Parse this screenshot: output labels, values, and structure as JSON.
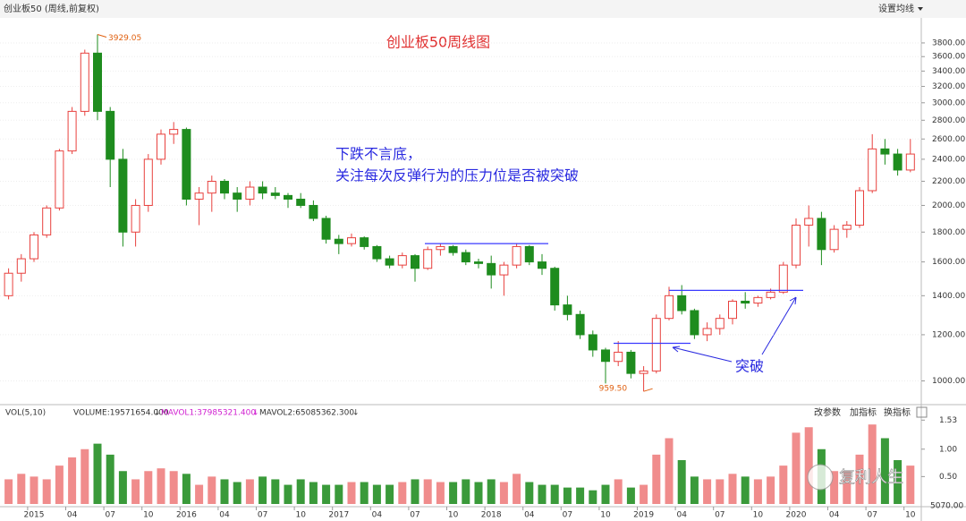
{
  "header": {
    "title": "创业板50 (周线,前复权)",
    "menu": "设置均线"
  },
  "chart_data": {
    "type": "candlestick",
    "title": "创业板50周线图",
    "annotations": [
      "下跌不言底，",
      "关注每次反弹行为的压力位是否被突破",
      "突破"
    ],
    "categories": [
      null,
      null,
      "2015",
      null,
      null,
      "04",
      null,
      null,
      "07",
      null,
      null,
      "10",
      null,
      null,
      "2016",
      null,
      null,
      "04",
      null,
      null,
      "07",
      null,
      null,
      "10",
      null,
      null,
      "2017",
      null,
      null,
      "04",
      null,
      null,
      "07",
      null,
      null,
      "10",
      null,
      null,
      "2018",
      null,
      null,
      "04",
      null,
      null,
      "07",
      null,
      null,
      "10",
      null,
      null,
      "2019",
      null,
      null,
      "04",
      null,
      null,
      "07",
      null,
      null,
      "10",
      null,
      null,
      "2020",
      null,
      null,
      "04",
      null,
      null,
      "07",
      null,
      null,
      "10"
    ],
    "open": [
      1400,
      1530,
      1620,
      1780,
      1980,
      2480,
      2900,
      3650,
      2900,
      2400,
      1800,
      2000,
      2400,
      2650,
      2700,
      2050,
      2100,
      2200,
      2100,
      2050,
      2150,
      2100,
      2080,
      2050,
      2000,
      1900,
      1750,
      1720,
      1760,
      1700,
      1620,
      1580,
      1640,
      1560,
      1680,
      1700,
      1660,
      1600,
      1590,
      1520,
      1580,
      1700,
      1600,
      1560,
      1350,
      1300,
      1200,
      1130,
      1080,
      1120,
      1030,
      1040,
      1280,
      1400,
      1320,
      1200,
      1230,
      1280,
      1370,
      1360,
      1390,
      1420,
      1580,
      1850,
      1900,
      1680,
      1820,
      1850,
      2120,
      2500,
      2450,
      2300
    ],
    "high": [
      1560,
      1650,
      1800,
      2000,
      2500,
      2950,
      3700,
      3929.05,
      2950,
      2500,
      2050,
      2450,
      2700,
      2780,
      2720,
      2150,
      2250,
      2220,
      2150,
      2200,
      2200,
      2150,
      2100,
      2100,
      2040,
      1920,
      1780,
      1790,
      1770,
      1710,
      1640,
      1660,
      1650,
      1700,
      1720,
      1710,
      1680,
      1620,
      1640,
      1600,
      1720,
      1710,
      1650,
      1570,
      1400,
      1320,
      1220,
      1140,
      1170,
      1130,
      1060,
      1300,
      1450,
      1460,
      1330,
      1260,
      1300,
      1380,
      1420,
      1400,
      1440,
      1600,
      1900,
      2000,
      1950,
      1850,
      1880,
      2150,
      2650,
      2600,
      2500,
      2600
    ],
    "low": [
      1380,
      1480,
      1600,
      1760,
      1960,
      2450,
      2850,
      2800,
      2150,
      1700,
      1700,
      1950,
      2350,
      2550,
      2000,
      1850,
      1950,
      2050,
      1950,
      2000,
      2050,
      2050,
      1980,
      1980,
      1880,
      1720,
      1650,
      1700,
      1680,
      1600,
      1560,
      1560,
      1480,
      1550,
      1640,
      1640,
      1580,
      1560,
      1440,
      1400,
      1560,
      1580,
      1520,
      1320,
      1270,
      1180,
      1100,
      990,
      1060,
      1010,
      959.5,
      1030,
      1270,
      1300,
      1180,
      1170,
      1200,
      1250,
      1330,
      1340,
      1380,
      1410,
      1560,
      1700,
      1580,
      1660,
      1760,
      1830,
      2100,
      2350,
      2250,
      2280
    ],
    "close": [
      1530,
      1620,
      1780,
      1980,
      2480,
      2900,
      3650,
      2900,
      2400,
      1800,
      2000,
      2400,
      2650,
      2700,
      2050,
      2100,
      2200,
      2100,
      2050,
      2150,
      2100,
      2080,
      2050,
      2000,
      1900,
      1750,
      1720,
      1760,
      1700,
      1620,
      1580,
      1640,
      1560,
      1680,
      1700,
      1660,
      1600,
      1590,
      1520,
      1580,
      1700,
      1600,
      1560,
      1350,
      1300,
      1200,
      1130,
      1080,
      1120,
      1030,
      1040,
      1280,
      1400,
      1320,
      1200,
      1230,
      1280,
      1370,
      1360,
      1390,
      1420,
      1580,
      1850,
      1900,
      1680,
      1820,
      1850,
      2120,
      2500,
      2450,
      2300,
      2450
    ],
    "up_color": "#e8413e",
    "down_color": "#1e8c1e",
    "log_scale": true,
    "grid": true,
    "ylim": [
      950,
      3950
    ],
    "yticks": [
      {
        "value": 1000,
        "label": "1000.00"
      },
      {
        "value": 1200,
        "label": "1200.00"
      },
      {
        "value": 1400,
        "label": "1400.00"
      },
      {
        "value": 1600,
        "label": "1600.00"
      },
      {
        "value": 1800,
        "label": "1800.00"
      },
      {
        "value": 2000,
        "label": "2000.00"
      },
      {
        "value": 2200,
        "label": "2200.00"
      },
      {
        "value": 2400,
        "label": "2400.00"
      },
      {
        "value": 2600,
        "label": "2600.00"
      },
      {
        "value": 2800,
        "label": "2800.00"
      },
      {
        "value": 3000,
        "label": "3000.00"
      },
      {
        "value": 3200,
        "label": "3200.00"
      },
      {
        "value": 3400,
        "label": "3400.00"
      },
      {
        "value": 3600,
        "label": "3600.00"
      },
      {
        "value": 3800,
        "label": "3800.00"
      }
    ],
    "max_label": {
      "value": 3929.05,
      "label": "3929.05"
    },
    "min_label": {
      "value": 959.5,
      "label": "959.50"
    },
    "resistance_lines": [
      1720,
      1160,
      1430
    ],
    "resistance_color": "#3a3aff",
    "volume": [
      0.45,
      0.55,
      0.5,
      0.45,
      0.7,
      0.85,
      1.0,
      1.1,
      0.9,
      0.6,
      0.45,
      0.6,
      0.65,
      0.6,
      0.55,
      0.35,
      0.5,
      0.45,
      0.4,
      0.45,
      0.5,
      0.45,
      0.35,
      0.45,
      0.4,
      0.35,
      0.35,
      0.4,
      0.4,
      0.35,
      0.35,
      0.4,
      0.45,
      0.45,
      0.4,
      0.4,
      0.45,
      0.4,
      0.45,
      0.4,
      0.55,
      0.4,
      0.35,
      0.35,
      0.3,
      0.3,
      0.25,
      0.35,
      0.45,
      0.3,
      0.35,
      0.9,
      1.2,
      0.8,
      0.5,
      0.45,
      0.45,
      0.55,
      0.5,
      0.45,
      0.5,
      0.7,
      1.3,
      1.4,
      1.0,
      0.6,
      0.6,
      0.9,
      1.45,
      1.2,
      0.8,
      0.7
    ],
    "volume_ylim": [
      0,
      1.6
    ],
    "volume_yticks": [
      1.53,
      {
        "value": 1,
        "label": "1.00"
      },
      {
        "value": 0.5,
        "label": "0.50"
      }
    ]
  },
  "volume_panel": {
    "name": "VOL(5,10)",
    "volume": "VOLUME:19571654.000",
    "mavol1": "MAVOL1:37985321.400",
    "mavol2": "MAVOL2:65085362.300",
    "bottom_label": "5070.00",
    "buttons": [
      "改参数",
      "加指标",
      "换指标"
    ]
  },
  "watermark": "复利人生"
}
